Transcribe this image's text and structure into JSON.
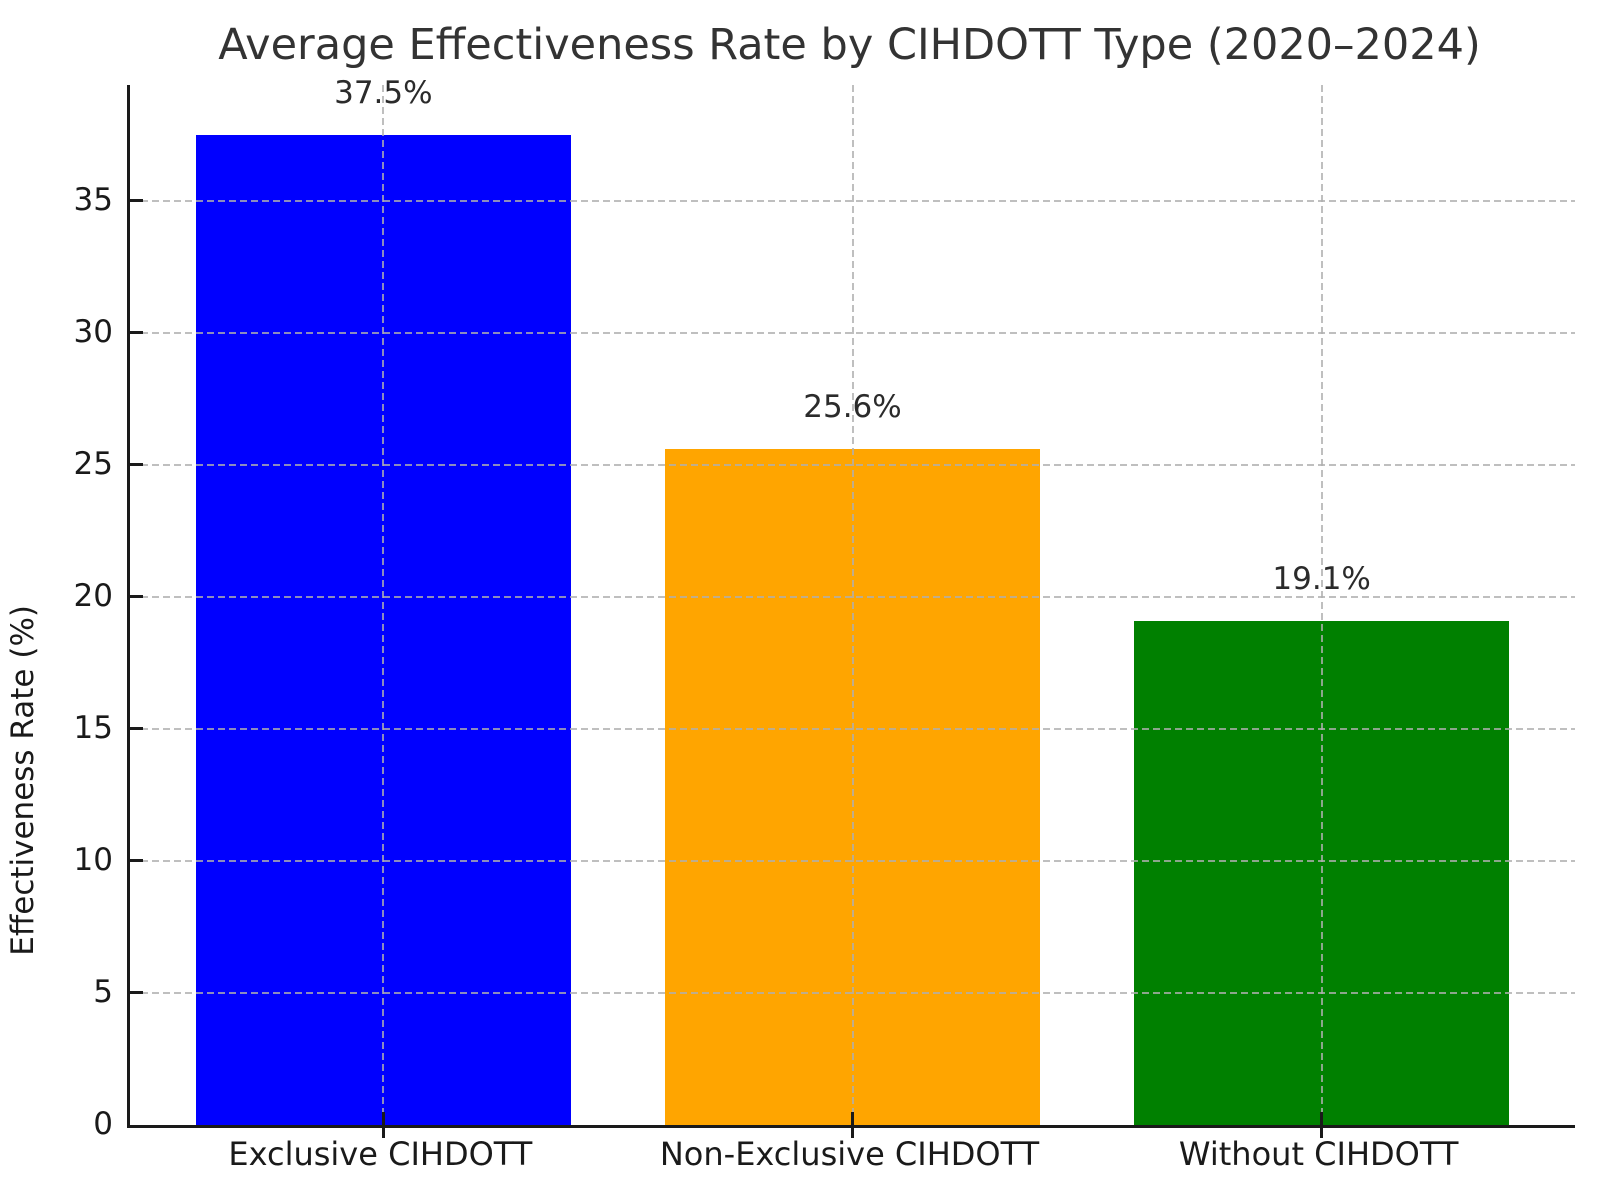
{
  "chart_data": {
    "type": "bar",
    "title": "Average Effectiveness Rate by CIHDOTT Type (2020–2024)",
    "ylabel": "Effectiveness Rate (%)",
    "xlabel": "",
    "categories": [
      "Exclusive CIHDOTT",
      "Non-Exclusive CIHDOTT",
      "Without CIHDOTT"
    ],
    "values": [
      37.5,
      25.6,
      19.1
    ],
    "value_labels": [
      "37.5%",
      "25.6%",
      "19.1%"
    ],
    "bar_colors": [
      "#0000ff",
      "#ffa500",
      "#008000"
    ],
    "ylim": [
      0,
      39.375
    ],
    "xlim": [
      -0.54,
      2.54
    ],
    "yticks": [
      0,
      5,
      10,
      15,
      20,
      25,
      30,
      35
    ],
    "bar_width_fraction": 0.8,
    "grid": {
      "style": "dashed",
      "color_on_white": "#cbcbcb",
      "horizontal": true,
      "vertical": true,
      "drawn_over_bars": true
    },
    "legend_position": "none",
    "text_color": "#1a1a1a",
    "title_color": "#333333",
    "background_color": "#ffffff"
  }
}
